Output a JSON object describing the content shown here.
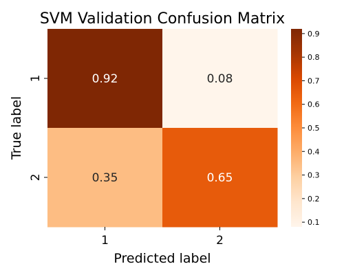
{
  "chart_data": {
    "type": "heatmap",
    "title": "SVM Validation Confusion Matrix",
    "xlabel": "Predicted label",
    "ylabel": "True label",
    "x_categories": [
      "1",
      "2"
    ],
    "y_categories": [
      "1",
      "2"
    ],
    "values": [
      [
        0.92,
        0.08
      ],
      [
        0.35,
        0.65
      ]
    ],
    "annotations": [
      [
        "0.92",
        "0.08"
      ],
      [
        "0.35",
        "0.65"
      ]
    ],
    "colormap": "Oranges",
    "color_range": [
      0.08,
      0.92
    ],
    "colorbar_ticks": [
      "0.1",
      "0.2",
      "0.3",
      "0.4",
      "0.5",
      "0.6",
      "0.7",
      "0.8",
      "0.9"
    ],
    "colorbar_tick_values": [
      0.1,
      0.2,
      0.3,
      0.4,
      0.5,
      0.6,
      0.7,
      0.8,
      0.9
    ],
    "grid": false,
    "legend": "colorbar-right"
  }
}
